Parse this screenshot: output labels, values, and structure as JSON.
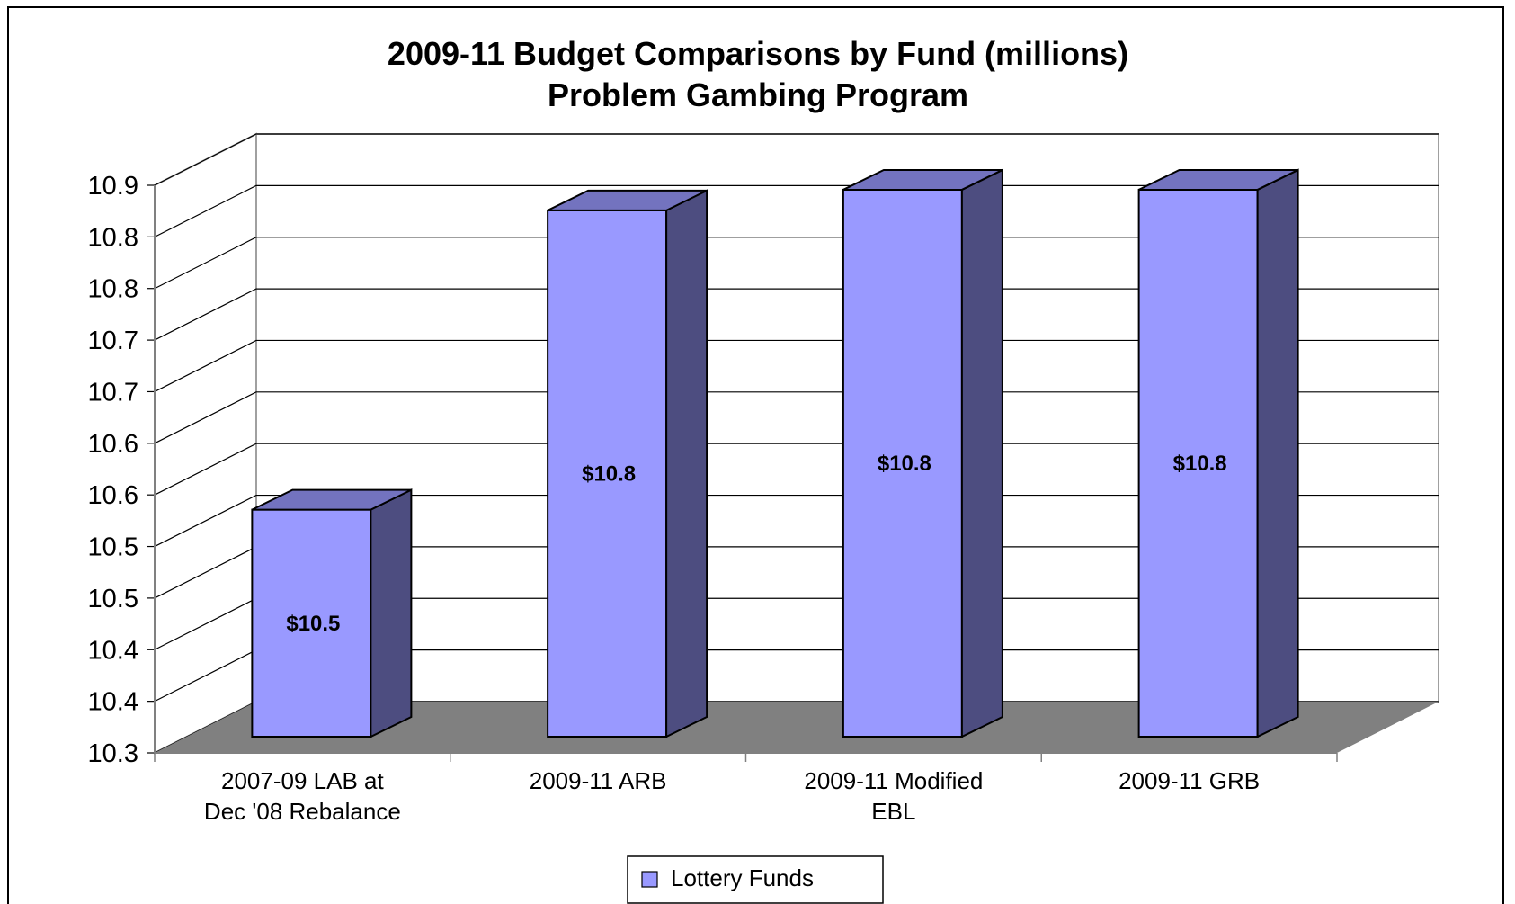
{
  "chart_data": {
    "type": "bar",
    "title": "2009-11 Budget Comparisons by Fund (millions)",
    "subtitle": "Problem Gambing Program",
    "categories": [
      [
        "2007-09 LAB at",
        "Dec '08 Rebalance"
      ],
      [
        "2009-11 ARB"
      ],
      [
        "2009-11 Modified",
        "EBL"
      ],
      [
        "2009-11 GRB"
      ]
    ],
    "series": [
      {
        "name": "Lottery Funds",
        "values": [
          10.52,
          10.81,
          10.83,
          10.83
        ],
        "data_labels": [
          "$10.5",
          "$10.8",
          "$10.8",
          "$10.8"
        ],
        "color": "#9999ff",
        "side_color": "#4d4d80",
        "top_color": "#7373bf"
      }
    ],
    "ylim": [
      10.3,
      10.85
    ],
    "yticks": [
      {
        "value": 10.3,
        "label": "10.3"
      },
      {
        "value": 10.35,
        "label": "10.4"
      },
      {
        "value": 10.4,
        "label": "10.4"
      },
      {
        "value": 10.45,
        "label": "10.5"
      },
      {
        "value": 10.5,
        "label": "10.5"
      },
      {
        "value": 10.55,
        "label": "10.6"
      },
      {
        "value": 10.6,
        "label": "10.6"
      },
      {
        "value": 10.65,
        "label": "10.7"
      },
      {
        "value": 10.7,
        "label": "10.7"
      },
      {
        "value": 10.75,
        "label": "10.8"
      },
      {
        "value": 10.8,
        "label": "10.8"
      },
      {
        "value": 10.85,
        "label": "10.9"
      }
    ],
    "xlabel": "",
    "ylabel": "",
    "grid": true,
    "three_d": true,
    "floor_color": "#808080",
    "legend": {
      "position": "bottom",
      "entries": [
        "Lottery Funds"
      ]
    }
  }
}
